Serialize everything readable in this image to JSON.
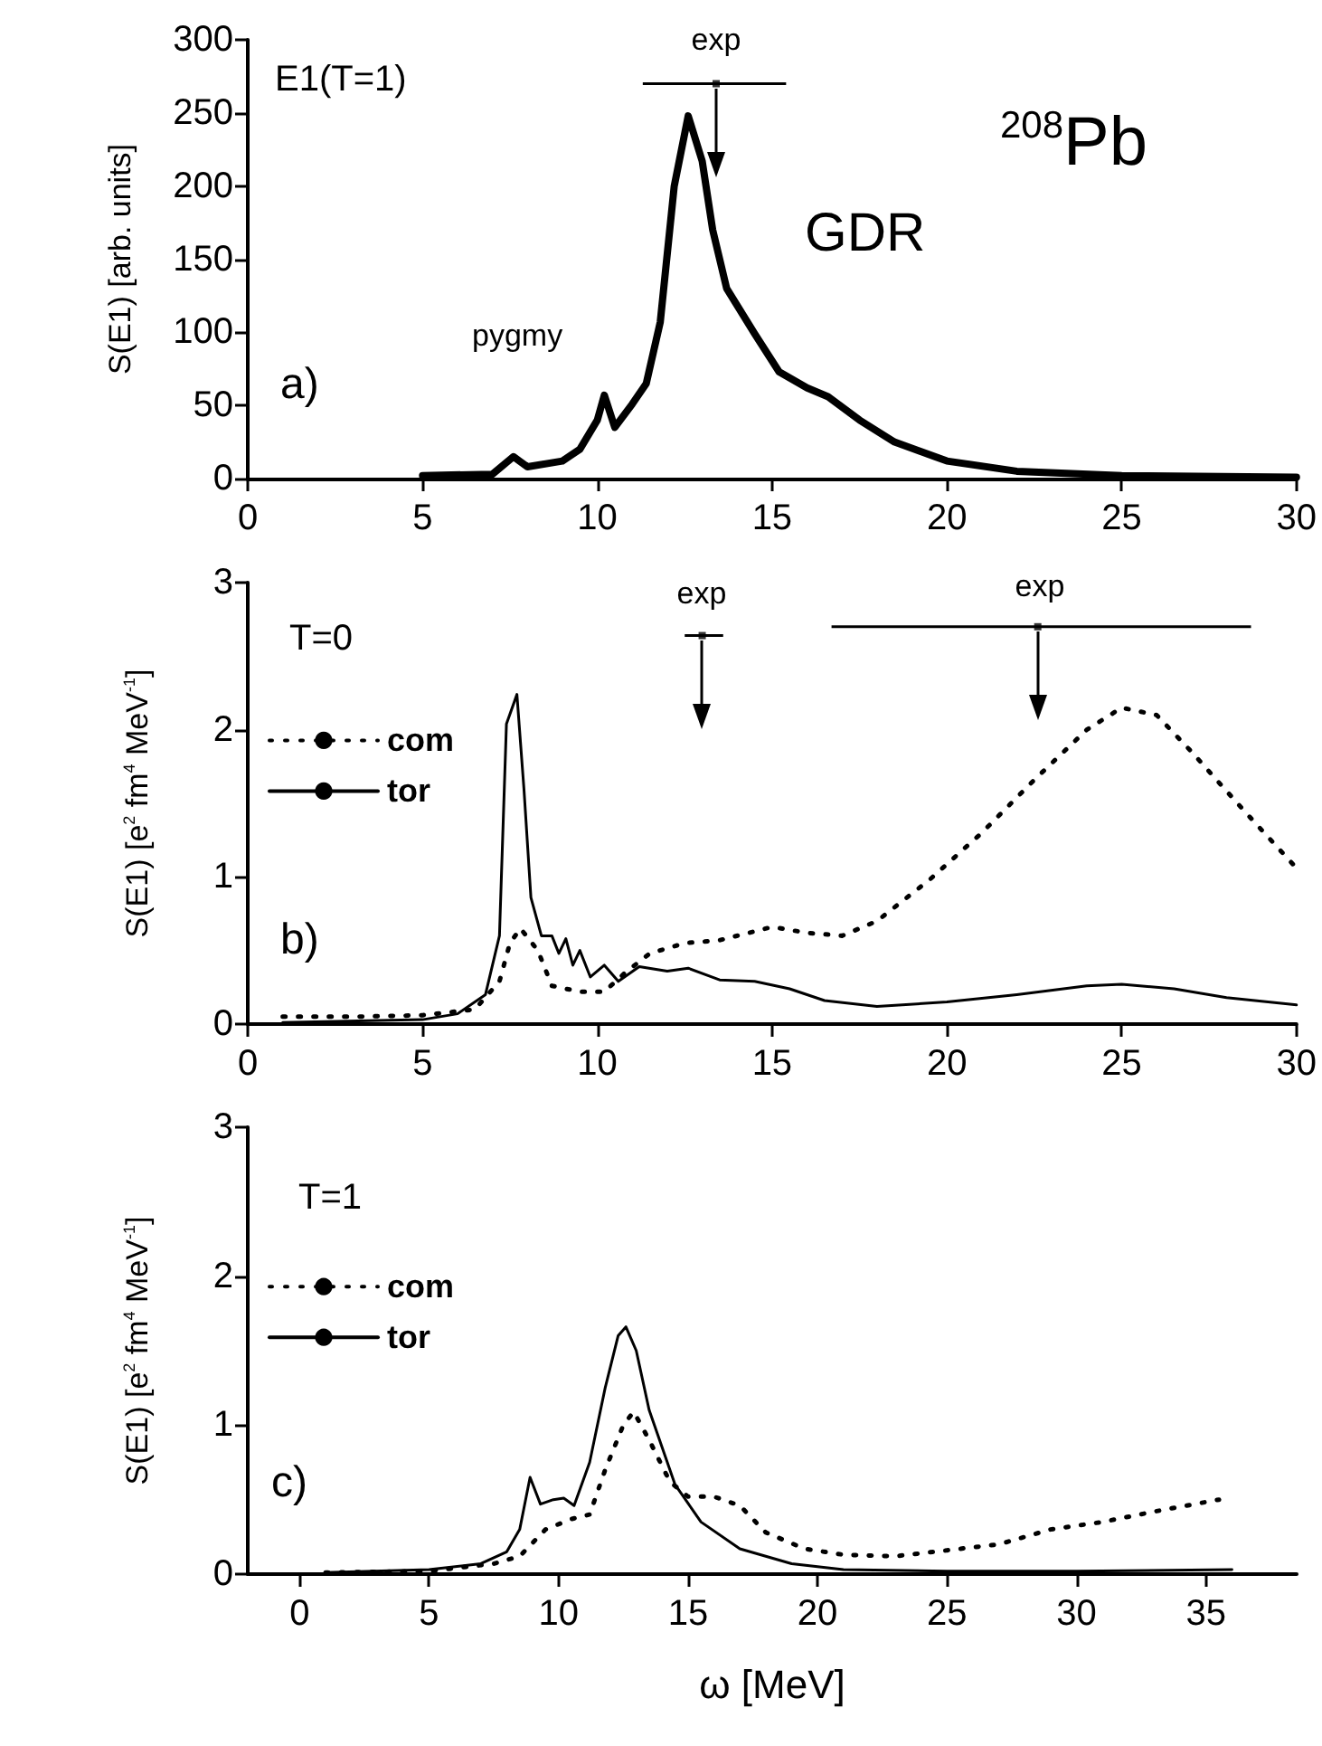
{
  "chart_data": [
    {
      "type": "line",
      "ylabel": "S(E1) [arb. units]",
      "xlim": [
        0,
        30
      ],
      "xticks": [
        0,
        5,
        10,
        15,
        20,
        25,
        30
      ],
      "ylim": [
        0,
        300
      ],
      "yticks": [
        0,
        50,
        100,
        150,
        200,
        250,
        300
      ],
      "grid": false,
      "marker": "none",
      "annotations": [
        "E1(T=1)",
        "a)",
        "GDR",
        "$^{208}$Pb",
        "pygmy",
        "exp"
      ],
      "series": [
        {
          "color": "#000000",
          "line_style": "solid",
          "x": [
            5,
            7,
            7.6,
            8,
            9,
            9.5,
            10,
            10.2,
            10.5,
            11,
            11.4,
            11.8,
            12.2,
            12.6,
            13,
            13.3,
            13.7,
            14.5,
            15.2,
            16,
            16.6,
            17.5,
            18.5,
            20,
            22,
            25,
            30
          ],
          "values": [
            2,
            3,
            15,
            8,
            12,
            20,
            40,
            57,
            35,
            51,
            65,
            107,
            200,
            248,
            217,
            170,
            130,
            99,
            73,
            62,
            56,
            40,
            25,
            12,
            5,
            2,
            1
          ]
        },
        {
          "type": "scatter",
          "color": "#000000",
          "marker": "square",
          "x": [
            13.4
          ],
          "values": [
            270
          ],
          "xerrors": [
            [
              11.3,
              15.4
            ]
          ]
        }
      ]
    },
    {
      "type": "line",
      "ylabel": "S(E1) [e$^{2}$ fm$^{4}$ MeV$^{-1}$]",
      "xlim": [
        0,
        30
      ],
      "xticks": [
        0,
        5,
        10,
        15,
        20,
        25,
        30
      ],
      "ylim": [
        0,
        3
      ],
      "yticks": [
        0,
        1,
        2,
        3
      ],
      "grid": false,
      "marker": "none",
      "legend": "left",
      "annotations": [
        "T=0",
        "b)",
        "exp",
        "exp"
      ],
      "series": [
        {
          "name": "com",
          "color": "#000000",
          "line_style": "dotted",
          "x": [
            1,
            3,
            5,
            6.5,
            7.2,
            7.5,
            7.8,
            8.3,
            8.7,
            9.5,
            10.2,
            10.8,
            11.5,
            12.5,
            13.5,
            15,
            16,
            17,
            18,
            19.5,
            21,
            22.5,
            24,
            25,
            26,
            27,
            28.5,
            30
          ],
          "values": [
            0.05,
            0.05,
            0.06,
            0.1,
            0.29,
            0.55,
            0.65,
            0.5,
            0.26,
            0.22,
            0.22,
            0.35,
            0.48,
            0.55,
            0.57,
            0.66,
            0.62,
            0.6,
            0.7,
            0.98,
            1.3,
            1.66,
            2.0,
            2.15,
            2.1,
            1.85,
            1.45,
            1.06
          ]
        },
        {
          "name": "tor",
          "color": "#000000",
          "line_style": "solid",
          "x": [
            1,
            5,
            6,
            6.8,
            7.2,
            7.4,
            7.7,
            7.9,
            8.1,
            8.4,
            8.7,
            8.9,
            9.1,
            9.3,
            9.5,
            9.8,
            10.2,
            10.6,
            11.2,
            12,
            12.6,
            13.5,
            14.5,
            15.5,
            16.5,
            18,
            20,
            22,
            24,
            25,
            26.5,
            28,
            30
          ],
          "values": [
            0.01,
            0.03,
            0.07,
            0.2,
            0.6,
            2.04,
            2.24,
            1.6,
            0.86,
            0.6,
            0.6,
            0.48,
            0.58,
            0.4,
            0.5,
            0.32,
            0.4,
            0.29,
            0.39,
            0.36,
            0.38,
            0.3,
            0.29,
            0.24,
            0.16,
            0.12,
            0.15,
            0.2,
            0.26,
            0.27,
            0.24,
            0.18,
            0.13
          ]
        },
        {
          "type": "scatter",
          "color": "#000000",
          "marker": "square",
          "x": [
            13,
            22.6
          ],
          "values": [
            2.64,
            2.7
          ],
          "xerrors": [
            [
              12.5,
              13.6
            ],
            [
              16.7,
              28.7
            ]
          ]
        }
      ]
    },
    {
      "type": "line",
      "xlabel": "ω [MeV]",
      "ylabel": "S(E1) [e$^{2}$ fm$^{4}$ MeV$^{-1}$]",
      "xlim": [
        -2,
        38.5
      ],
      "xticks": [
        0,
        5,
        10,
        15,
        20,
        25,
        30,
        35
      ],
      "ylim": [
        0,
        3
      ],
      "yticks": [
        0,
        1,
        2,
        3
      ],
      "grid": false,
      "marker": "none",
      "legend": "left",
      "annotations": [
        "T=1",
        "c)"
      ],
      "series": [
        {
          "name": "com",
          "color": "#000000",
          "line_style": "dotted",
          "x": [
            1,
            5,
            7.5,
            8.5,
            9.5,
            10.5,
            11.2,
            11.8,
            12.5,
            12.9,
            13.5,
            14.3,
            15,
            16,
            17,
            18,
            19.5,
            21,
            23,
            25,
            27,
            29,
            31,
            33,
            35.5
          ],
          "values": [
            0.01,
            0.02,
            0.07,
            0.12,
            0.3,
            0.37,
            0.4,
            0.7,
            1.0,
            1.09,
            0.9,
            0.62,
            0.52,
            0.52,
            0.46,
            0.28,
            0.17,
            0.13,
            0.12,
            0.16,
            0.2,
            0.3,
            0.35,
            0.42,
            0.5
          ]
        },
        {
          "name": "tor",
          "color": "#000000",
          "line_style": "solid",
          "x": [
            1,
            5,
            7,
            8,
            8.5,
            8.9,
            9.3,
            9.8,
            10.2,
            10.6,
            11.2,
            11.8,
            12.3,
            12.6,
            13,
            13.5,
            14.5,
            15.5,
            17,
            19,
            21,
            25,
            30,
            36
          ],
          "values": [
            0.01,
            0.03,
            0.07,
            0.15,
            0.3,
            0.65,
            0.47,
            0.5,
            0.51,
            0.46,
            0.75,
            1.25,
            1.6,
            1.66,
            1.5,
            1.1,
            0.6,
            0.35,
            0.17,
            0.07,
            0.03,
            0.02,
            0.02,
            0.03
          ]
        }
      ]
    }
  ]
}
